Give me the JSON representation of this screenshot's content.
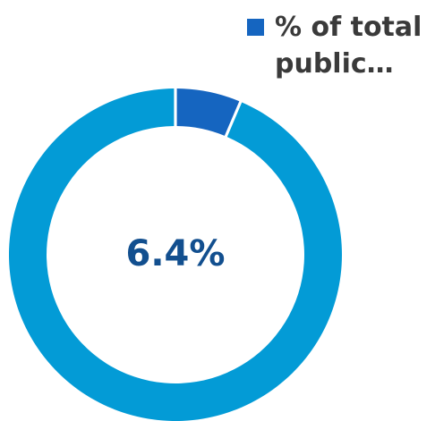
{
  "chart_data": {
    "type": "pie",
    "variant": "donut",
    "center_label": "6.4%",
    "legend": {
      "placement": "top-right",
      "entries": [
        {
          "label_line_1": "% of total",
          "label_line_2": "public…"
        }
      ]
    },
    "slices": [
      {
        "value": 6.4,
        "color": "#1565c0"
      },
      {
        "value": 93.6,
        "color": "#039bd6"
      }
    ],
    "center_label_color": "#124f8f"
  }
}
